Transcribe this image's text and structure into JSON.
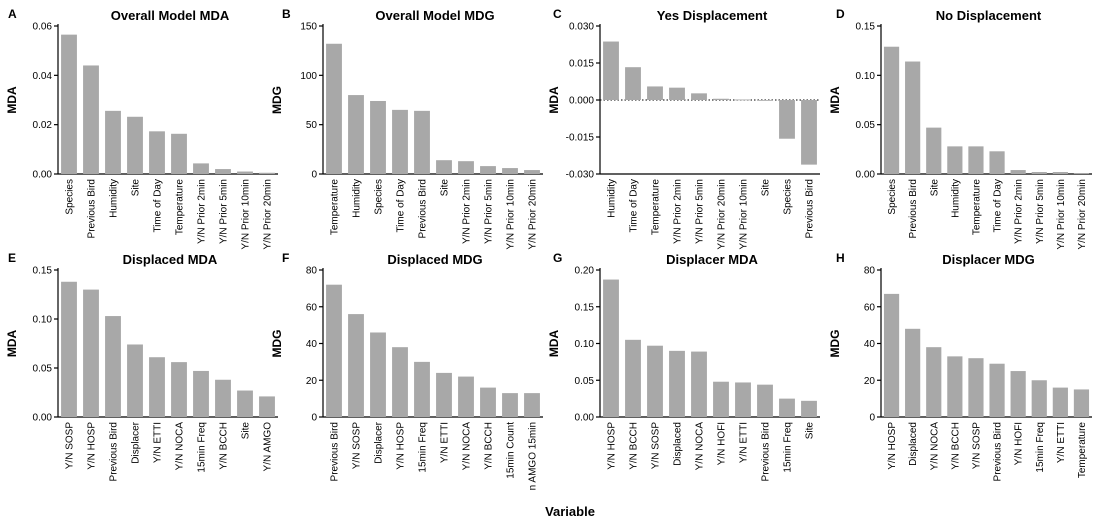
{
  "xaxis_title": "Variable",
  "chart_data": [
    {
      "letter": "A",
      "type": "bar",
      "title": "Overall Model MDA",
      "ylabel": "MDA",
      "ylim": [
        0,
        0.06
      ],
      "yticks": [
        "0.00",
        "0.02",
        "0.04",
        "0.06"
      ],
      "categories": [
        "Species",
        "Previous Bird",
        "Humidity",
        "Site",
        "Time of Day",
        "Temperature",
        "Y/N Prior 2min",
        "Y/N Prior 5min",
        "Y/N Prior 10min",
        "Y/N Prior 20min"
      ],
      "values": [
        0.0565,
        0.044,
        0.0256,
        0.0232,
        0.0173,
        0.0163,
        0.0043,
        0.002,
        0.001,
        0.0005
      ]
    },
    {
      "letter": "B",
      "type": "bar",
      "title": "Overall Model MDG",
      "ylabel": "MDG",
      "ylim": [
        0,
        150
      ],
      "yticks": [
        "0",
        "50",
        "100",
        "150"
      ],
      "categories": [
        "Temperature",
        "Humidity",
        "Species",
        "Time of Day",
        "Previous Bird",
        "Site",
        "Y/N Prior 2min",
        "Y/N Prior 5min",
        "Y/N Prior 10min",
        "Y/N Prior 20min"
      ],
      "values": [
        132,
        80,
        74,
        65,
        64,
        14,
        13,
        8,
        6,
        4
      ]
    },
    {
      "letter": "C",
      "type": "bar",
      "title": "Yes Displacement",
      "ylabel": "MDA",
      "ylim": [
        -0.03,
        0.03
      ],
      "yticks": [
        "-0.030",
        "-0.015",
        "0.000",
        "0.015",
        "0.030"
      ],
      "zero_line": true,
      "categories": [
        "Humidity",
        "Time of Day",
        "Temperature",
        "Y/N Prior 2min",
        "Y/N Prior 5min",
        "Y/N Prior 20min",
        "Y/N Prior 10min",
        "Site",
        "Species",
        "Previous Bird"
      ],
      "values": [
        0.0237,
        0.0133,
        0.0055,
        0.005,
        0.0027,
        0.0005,
        0.0002,
        -0.0002,
        -0.0157,
        -0.0262
      ]
    },
    {
      "letter": "D",
      "type": "bar",
      "title": "No Displacement",
      "ylabel": "MDA",
      "ylim": [
        0,
        0.15
      ],
      "yticks": [
        "0.00",
        "0.05",
        "0.10",
        "0.15"
      ],
      "categories": [
        "Species",
        "Previous Bird",
        "Site",
        "Humidity",
        "Temperature",
        "Time of Day",
        "Y/N Prior 2min",
        "Y/N Prior 5min",
        "Y/N Prior 10min",
        "Y/N Prior 20min"
      ],
      "values": [
        0.129,
        0.114,
        0.047,
        0.028,
        0.028,
        0.023,
        0.004,
        0.002,
        0.002,
        0.001
      ]
    },
    {
      "letter": "E",
      "type": "bar",
      "title": "Displaced MDA",
      "ylabel": "MDA",
      "ylim": [
        0,
        0.15
      ],
      "yticks": [
        "0.00",
        "0.05",
        "0.10",
        "0.15"
      ],
      "categories": [
        "Y/N SOSP",
        "Y/N HOSP",
        "Previous Bird",
        "Displacer",
        "Y/N ETTI",
        "Y/N NOCA",
        "15min Freq",
        "Y/N BCCH",
        "Site",
        "Y/N AMGO"
      ],
      "values": [
        0.138,
        0.13,
        0.103,
        0.074,
        0.061,
        0.056,
        0.047,
        0.038,
        0.027,
        0.021
      ]
    },
    {
      "letter": "F",
      "type": "bar",
      "title": "Displaced MDG",
      "ylabel": "MDG",
      "ylim": [
        0,
        80
      ],
      "yticks": [
        "0",
        "20",
        "40",
        "60",
        "80"
      ],
      "categories": [
        "Previous Bird",
        "Y/N SOSP",
        "Displacer",
        "Y/N HOSP",
        "15min Freq",
        "Y/N ETTI",
        "Y/N NOCA",
        "Y/N BCCH",
        "15min Count",
        "n AMGO 15min"
      ],
      "values": [
        72,
        56,
        46,
        38,
        30,
        24,
        22,
        16,
        13,
        13
      ]
    },
    {
      "letter": "G",
      "type": "bar",
      "title": "Displacer MDA",
      "ylabel": "MDA",
      "ylim": [
        0,
        0.2
      ],
      "yticks": [
        "0.00",
        "0.05",
        "0.10",
        "0.15",
        "0.20"
      ],
      "categories": [
        "Y/N HOSP",
        "Y/N BCCH",
        "Y/N SOSP",
        "Displaced",
        "Y/N NOCA",
        "Y/N HOFI",
        "Y/N ETTI",
        "Previous Bird",
        "15min Freq",
        "Site"
      ],
      "values": [
        0.187,
        0.105,
        0.097,
        0.09,
        0.089,
        0.048,
        0.047,
        0.044,
        0.025,
        0.022
      ]
    },
    {
      "letter": "H",
      "type": "bar",
      "title": "Displacer MDG",
      "ylabel": "MDG",
      "ylim": [
        0,
        80
      ],
      "yticks": [
        "0",
        "20",
        "40",
        "60",
        "80"
      ],
      "categories": [
        "Y/N HOSP",
        "Displaced",
        "Y/N NOCA",
        "Y/N BCCH",
        "Y/N SOSP",
        "Previous Bird",
        "Y/N HOFI",
        "15min Freq",
        "Y/N ETTI",
        "Temperature"
      ],
      "values": [
        67,
        48,
        38,
        33,
        32,
        29,
        25,
        20,
        16,
        15
      ]
    }
  ]
}
